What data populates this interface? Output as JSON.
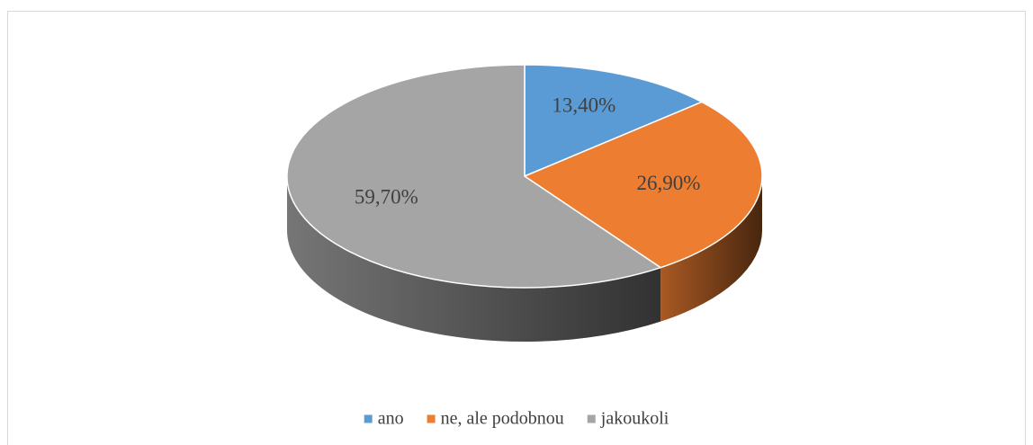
{
  "chart_data": {
    "type": "pie",
    "categories": [
      "ano",
      "ne, ale podobnou",
      "jakoukoli"
    ],
    "values": [
      13.4,
      26.9,
      59.7
    ],
    "value_labels": [
      "13,40%",
      "26,90%",
      "59,70%"
    ],
    "colors": [
      "#5b9bd5",
      "#ed7d31",
      "#a5a5a5"
    ],
    "legend": "bottom"
  }
}
